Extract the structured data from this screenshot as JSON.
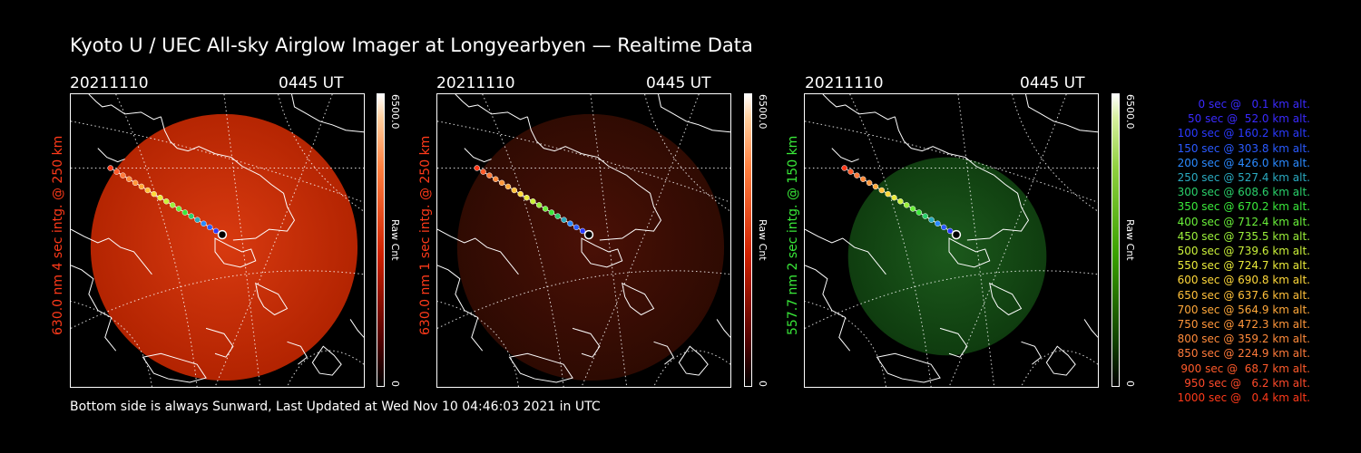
{
  "header": {
    "title": "Kyoto U / UEC All-sky Airglow Imager at Longyearbyen — Realtime Data"
  },
  "footer": {
    "text": "Bottom side is always Sunward, Last Updated at Wed Nov 10 04:46:03 2021 in UTC"
  },
  "panels": [
    {
      "date": "20211110",
      "time": "0445 UT",
      "side_label": "630.0 nm 4 sec intg. @ 250 km",
      "label_color": "#ff3a1a",
      "colorbar_max": "6500.0",
      "colorbar_unit": "Raw Cnt",
      "colorbar_min": "0",
      "colormap_color": "#d02000",
      "image_color": "#c42500"
    },
    {
      "date": "20211110",
      "time": "0445 UT",
      "side_label": "630.0 nm 1 sec intg. @ 250 km",
      "label_color": "#ff3a1a",
      "colorbar_max": "6500.0",
      "colorbar_unit": "Raw Cnt",
      "colorbar_min": "0",
      "colormap_color": "#d02000",
      "image_color": "#3a0c04"
    },
    {
      "date": "20211110",
      "time": "0445 UT",
      "side_label": "557.7 nm 2 sec intg. @ 150 km",
      "label_color": "#39e839",
      "colorbar_max": "6500.0",
      "colorbar_unit": "Raw Cnt",
      "colorbar_min": "0",
      "colormap_color": "#3aa000",
      "image_color": "#0e3a0e"
    }
  ],
  "legend": [
    {
      "text": "0 sec @   0.1 km alt.",
      "color": "#3a2aff"
    },
    {
      "text": "50 sec @  52.0 km alt.",
      "color": "#3a2aff"
    },
    {
      "text": "100 sec @ 160.2 km alt.",
      "color": "#2a3aff"
    },
    {
      "text": "150 sec @ 303.8 km alt.",
      "color": "#2a5aff"
    },
    {
      "text": "200 sec @ 426.0 km alt.",
      "color": "#2a8aff"
    },
    {
      "text": "250 sec @ 527.4 km alt.",
      "color": "#2aaac0"
    },
    {
      "text": "300 sec @ 608.6 km alt.",
      "color": "#2ad06a"
    },
    {
      "text": "350 sec @ 670.2 km alt.",
      "color": "#3ae83a"
    },
    {
      "text": "400 sec @ 712.4 km alt.",
      "color": "#6af03a"
    },
    {
      "text": "450 sec @ 735.5 km alt.",
      "color": "#9af03a"
    },
    {
      "text": "500 sec @ 739.6 km alt.",
      "color": "#caf03a"
    },
    {
      "text": "550 sec @ 724.7 km alt.",
      "color": "#eaea3a"
    },
    {
      "text": "600 sec @ 690.8 km alt.",
      "color": "#ffd83a"
    },
    {
      "text": "650 sec @ 637.6 km alt.",
      "color": "#ffc03a"
    },
    {
      "text": "700 sec @ 564.9 km alt.",
      "color": "#ffa83a"
    },
    {
      "text": "750 sec @ 472.3 km alt.",
      "color": "#ff963a"
    },
    {
      "text": "800 sec @ 359.2 km alt.",
      "color": "#ff8a3a"
    },
    {
      "text": "850 sec @ 224.9 km alt.",
      "color": "#ff7a3a"
    },
    {
      "text": "900 sec @  68.7 km alt.",
      "color": "#ff5a2a"
    },
    {
      "text": "950 sec @   6.2 km alt.",
      "color": "#ff4a2a"
    },
    {
      "text": "1000 sec @   0.4 km alt.",
      "color": "#ff3a1a"
    }
  ]
}
